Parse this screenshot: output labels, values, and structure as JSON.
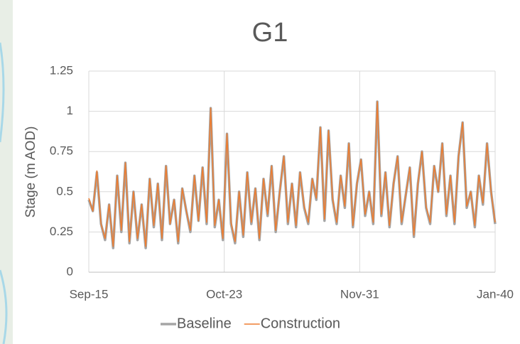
{
  "chart_data": {
    "type": "line",
    "title": "G1",
    "y_label": "Stage (m AOD)",
    "x": [
      0,
      3,
      6,
      9,
      12,
      15,
      18,
      21,
      24,
      27,
      30,
      33,
      36,
      39,
      42,
      45,
      48,
      51,
      54,
      57,
      60,
      63,
      66,
      69,
      72,
      75,
      78,
      81,
      84,
      87,
      90,
      93,
      96,
      99,
      102,
      105,
      108,
      111,
      114,
      117,
      120,
      123,
      126,
      129,
      132,
      135,
      138,
      141,
      144,
      147,
      150,
      153,
      156,
      159,
      162,
      165,
      168,
      171,
      174,
      177,
      180,
      183,
      186,
      189,
      192,
      195,
      198,
      201,
      204,
      207,
      210,
      213,
      216,
      219,
      222,
      225,
      228,
      231,
      234,
      237,
      240,
      243,
      246,
      249,
      252,
      255,
      258,
      261,
      264,
      267,
      270,
      273,
      276,
      279,
      282,
      285,
      288,
      291,
      294,
      297,
      300
    ],
    "xlim": [
      0,
      300
    ],
    "xticks": [
      {
        "value": 0,
        "label": "Sep-15"
      },
      {
        "value": 100,
        "label": "Oct-23"
      },
      {
        "value": 200,
        "label": "Nov-31"
      },
      {
        "value": 300,
        "label": "Jan-40"
      }
    ],
    "ylim": [
      0,
      1.25
    ],
    "yticks": [
      0,
      0.25,
      0.5,
      0.75,
      1,
      1.25
    ],
    "grid": true,
    "series": [
      {
        "name": "Baseline",
        "color": "#a5a5a5",
        "values": [
          0.45,
          0.38,
          0.62,
          0.3,
          0.2,
          0.42,
          0.15,
          0.6,
          0.25,
          0.68,
          0.18,
          0.5,
          0.2,
          0.42,
          0.15,
          0.58,
          0.28,
          0.55,
          0.2,
          0.66,
          0.3,
          0.45,
          0.18,
          0.52,
          0.38,
          0.25,
          0.6,
          0.32,
          0.65,
          0.3,
          1.02,
          0.28,
          0.45,
          0.2,
          0.86,
          0.3,
          0.18,
          0.5,
          0.22,
          0.62,
          0.3,
          0.52,
          0.2,
          0.58,
          0.35,
          0.66,
          0.25,
          0.5,
          0.72,
          0.3,
          0.55,
          0.28,
          0.62,
          0.4,
          0.3,
          0.58,
          0.45,
          0.9,
          0.32,
          0.88,
          0.45,
          0.3,
          0.6,
          0.4,
          0.8,
          0.28,
          0.55,
          0.7,
          0.35,
          0.5,
          0.3,
          1.06,
          0.35,
          0.62,
          0.28,
          0.55,
          0.72,
          0.3,
          0.48,
          0.65,
          0.22,
          0.55,
          0.75,
          0.4,
          0.3,
          0.66,
          0.5,
          0.8,
          0.35,
          0.6,
          0.3,
          0.72,
          0.93,
          0.4,
          0.5,
          0.28,
          0.6,
          0.42,
          0.8,
          0.5,
          0.3
        ]
      },
      {
        "name": "Construction",
        "color": "#ed7d31",
        "values": [
          0.46,
          0.38,
          0.63,
          0.3,
          0.21,
          0.42,
          0.16,
          0.6,
          0.26,
          0.68,
          0.19,
          0.5,
          0.21,
          0.42,
          0.16,
          0.58,
          0.29,
          0.55,
          0.21,
          0.66,
          0.3,
          0.45,
          0.19,
          0.52,
          0.38,
          0.26,
          0.6,
          0.32,
          0.65,
          0.31,
          1.02,
          0.29,
          0.45,
          0.21,
          0.86,
          0.31,
          0.19,
          0.5,
          0.23,
          0.62,
          0.31,
          0.52,
          0.21,
          0.58,
          0.36,
          0.66,
          0.26,
          0.5,
          0.72,
          0.31,
          0.55,
          0.29,
          0.62,
          0.41,
          0.31,
          0.58,
          0.46,
          0.9,
          0.33,
          0.88,
          0.46,
          0.31,
          0.6,
          0.41,
          0.8,
          0.29,
          0.55,
          0.7,
          0.36,
          0.5,
          0.31,
          1.06,
          0.36,
          0.62,
          0.29,
          0.55,
          0.72,
          0.31,
          0.48,
          0.65,
          0.23,
          0.55,
          0.75,
          0.41,
          0.31,
          0.66,
          0.5,
          0.8,
          0.36,
          0.6,
          0.31,
          0.72,
          0.93,
          0.41,
          0.5,
          0.29,
          0.6,
          0.43,
          0.8,
          0.5,
          0.31
        ]
      }
    ]
  }
}
